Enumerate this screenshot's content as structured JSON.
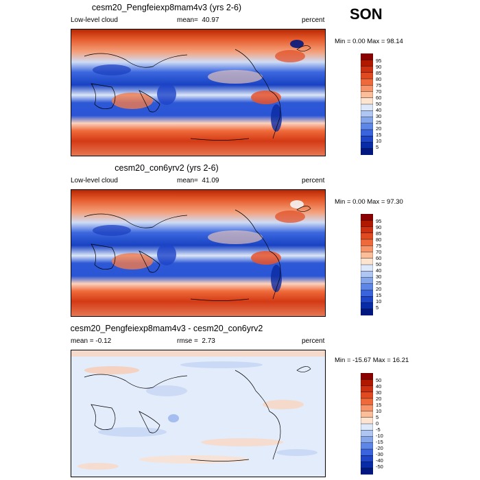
{
  "season": "SON",
  "panels": [
    {
      "title": "cesm20_Pengfeiexp8mam4v3 (yrs 2-6)",
      "left_text": "Low-level cloud",
      "center_label": "mean=",
      "center_value": "40.97",
      "units": "percent",
      "minmax": "Min =   0.00 Max =  98.14",
      "colorbar_labels": [
        "95",
        "90",
        "85",
        "80",
        "75",
        "70",
        "60",
        "50",
        "40",
        "30",
        "25",
        "20",
        "15",
        "10",
        "5"
      ]
    },
    {
      "title": "cesm20_con6yrv2 (yrs 2-6)",
      "left_text": "Low-level cloud",
      "center_label": "mean=",
      "center_value": "41.09",
      "units": "percent",
      "minmax": "Min =   0.00 Max =  97.30",
      "colorbar_labels": [
        "95",
        "90",
        "85",
        "80",
        "75",
        "70",
        "60",
        "50",
        "40",
        "30",
        "25",
        "20",
        "15",
        "10",
        "5"
      ]
    },
    {
      "title": "cesm20_Pengfeiexp8mam4v3 - cesm20_con6yrv2",
      "left_text": "mean =  -0.12",
      "center_label": "rmse =",
      "center_value": "2.73",
      "units": "percent",
      "minmax": "Min = -15.67 Max =  16.21",
      "colorbar_labels": [
        "50",
        "40",
        "30",
        "20",
        "15",
        "10",
        "5",
        "0",
        "-5",
        "-10",
        "-15",
        "-20",
        "-30",
        "-40",
        "-50"
      ]
    }
  ],
  "colors": {
    "abs_scale": [
      "#8b0000",
      "#b01800",
      "#cc3010",
      "#e04a20",
      "#ef6a3a",
      "#f7946a",
      "#fbbe9a",
      "#fce4d0",
      "#dde8fa",
      "#b0c6f2",
      "#86a6ec",
      "#5e86e6",
      "#3a64de",
      "#1e44c8",
      "#082ca8",
      "#021880"
    ],
    "diff_scale": [
      "#8b0000",
      "#b01800",
      "#cc3010",
      "#e04a20",
      "#ef6a3a",
      "#f7946a",
      "#fbbe9a",
      "#fce4d0",
      "#dde8fa",
      "#b0c6f2",
      "#86a6ec",
      "#5e86e6",
      "#3a64de",
      "#1e44c8",
      "#082ca8",
      "#021880"
    ]
  }
}
